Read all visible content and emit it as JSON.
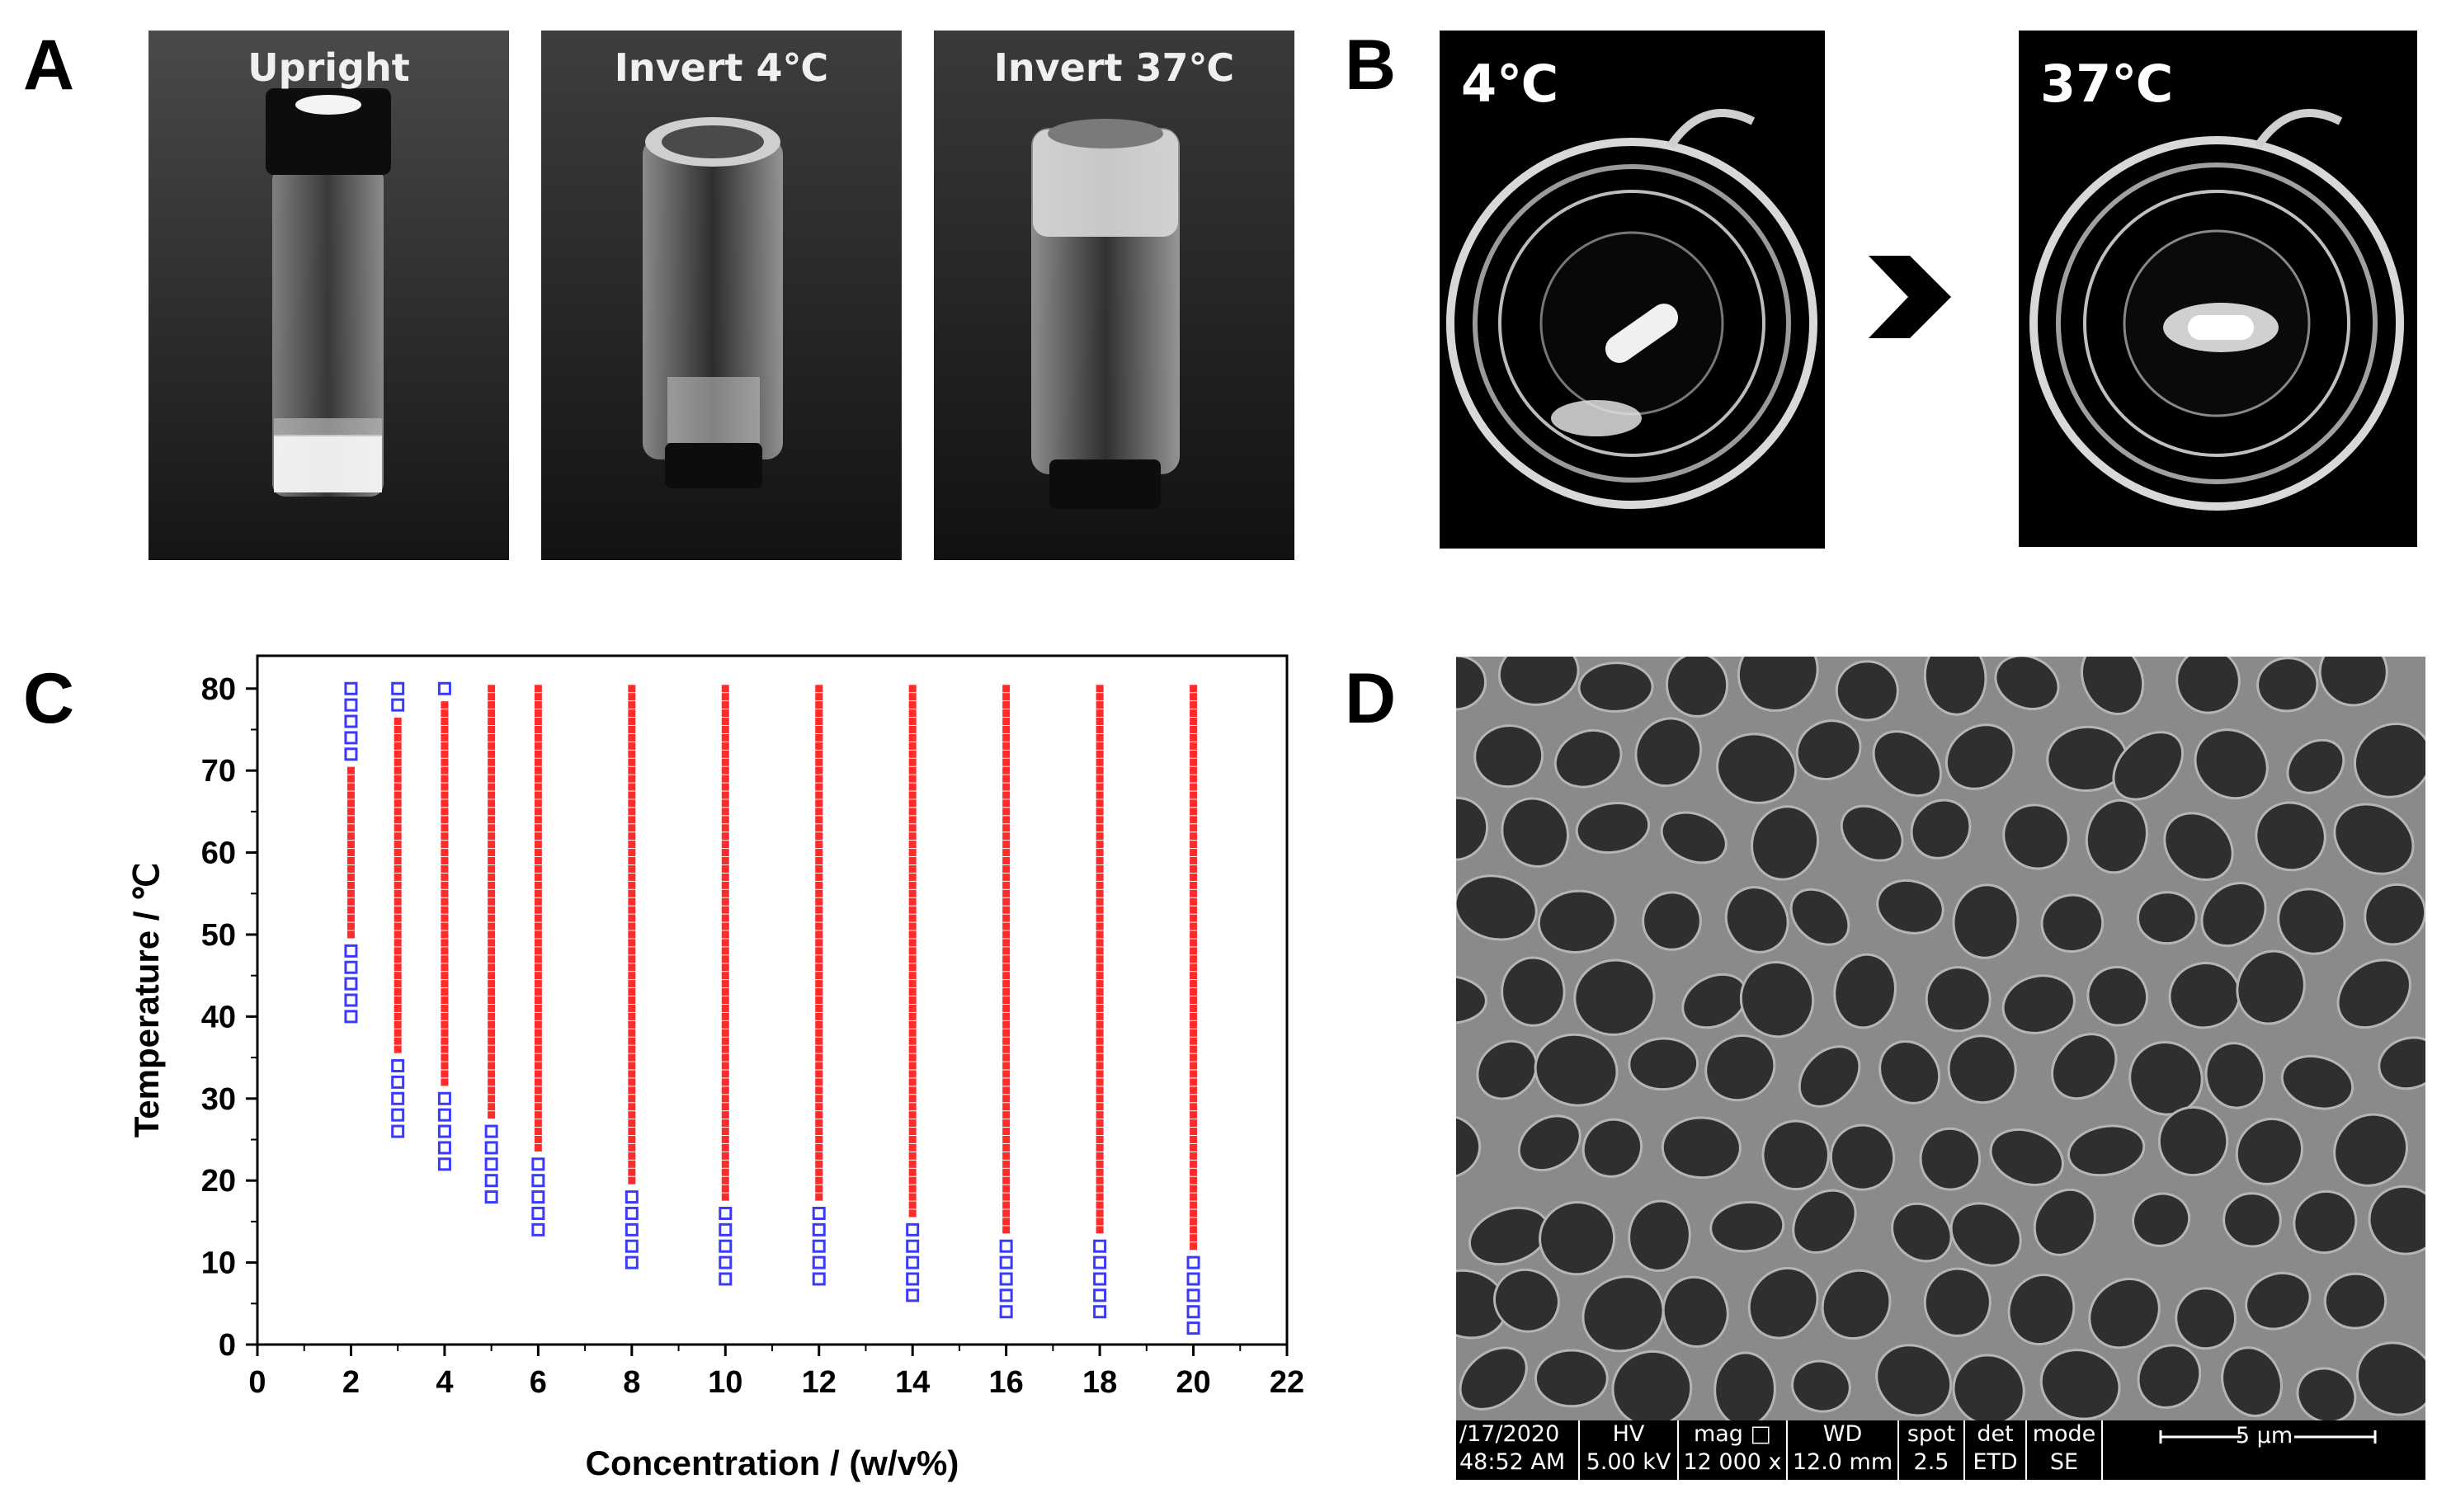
{
  "panels": {
    "a": {
      "letter": "A"
    },
    "b": {
      "letter": "B"
    },
    "c": {
      "letter": "C"
    },
    "d": {
      "letter": "D"
    }
  },
  "panel_a_photos": {
    "upright": "Upright",
    "invert_4": "Invert  4℃",
    "invert_37": "Invert  37℃"
  },
  "panel_b_photos": {
    "cold": "4℃",
    "warm": "37℃"
  },
  "chart_data": {
    "type": "scatter",
    "xlabel": "Concentration / (w/v%)",
    "ylabel": "Temperature / ℃",
    "xlim": [
      0,
      22
    ],
    "ylim": [
      0,
      84
    ],
    "xticks": [
      0,
      2,
      4,
      6,
      8,
      10,
      12,
      14,
      16,
      18,
      20,
      22
    ],
    "yticks": [
      0,
      10,
      20,
      30,
      40,
      50,
      60,
      70,
      80
    ],
    "grid": false,
    "series": [
      {
        "marker": "open-square",
        "color": "#3a3aff",
        "points": [
          {
            "x": 2,
            "y": [
              40,
              42,
              44,
              46,
              48,
              72,
              74,
              76,
              78,
              80
            ]
          },
          {
            "x": 3,
            "y": [
              26,
              28,
              30,
              32,
              34,
              78,
              80
            ]
          },
          {
            "x": 4,
            "y": [
              22,
              24,
              26,
              28,
              30,
              80
            ]
          },
          {
            "x": 5,
            "y": [
              18,
              20,
              22,
              24,
              26
            ]
          },
          {
            "x": 6,
            "y": [
              14,
              16,
              18,
              20,
              22
            ]
          },
          {
            "x": 8,
            "y": [
              10,
              12,
              14,
              16,
              18
            ]
          },
          {
            "x": 10,
            "y": [
              8,
              10,
              12,
              14,
              16
            ]
          },
          {
            "x": 12,
            "y": [
              8,
              10,
              12,
              14,
              16
            ]
          },
          {
            "x": 14,
            "y": [
              6,
              8,
              10,
              12,
              14
            ]
          },
          {
            "x": 16,
            "y": [
              4,
              6,
              8,
              10,
              12
            ]
          },
          {
            "x": 18,
            "y": [
              4,
              6,
              8,
              10,
              12
            ]
          },
          {
            "x": 20,
            "y": [
              2,
              4,
              6,
              8,
              10
            ]
          }
        ]
      },
      {
        "marker": "filled-square",
        "color": "#ff2a2a",
        "ranges": [
          {
            "x": 2,
            "from": 50,
            "to": 70
          },
          {
            "x": 3,
            "from": 36,
            "to": 76
          },
          {
            "x": 4,
            "from": 32,
            "to": 78
          },
          {
            "x": 5,
            "from": 28,
            "to": 80
          },
          {
            "x": 6,
            "from": 24,
            "to": 80
          },
          {
            "x": 8,
            "from": 20,
            "to": 80
          },
          {
            "x": 10,
            "from": 18,
            "to": 80
          },
          {
            "x": 12,
            "from": 18,
            "to": 80
          },
          {
            "x": 14,
            "from": 16,
            "to": 80
          },
          {
            "x": 16,
            "from": 14,
            "to": 80
          },
          {
            "x": 18,
            "from": 14,
            "to": 80
          },
          {
            "x": 20,
            "from": 12,
            "to": 80
          }
        ]
      }
    ]
  },
  "sem_info": {
    "date_label": "/17/2020",
    "time_label": "48:52 AM",
    "hv_label": "HV",
    "hv_value": "5.00 kV",
    "mag_label": "mag □",
    "mag_value": "12 000 x",
    "wd_label": "WD",
    "wd_value": "12.0 mm",
    "spot_label": "spot",
    "spot_value": "2.5",
    "det_label": "det",
    "det_value": "ETD",
    "mode_label": "mode",
    "mode_value": "SE",
    "scale_label": "5 μm"
  }
}
